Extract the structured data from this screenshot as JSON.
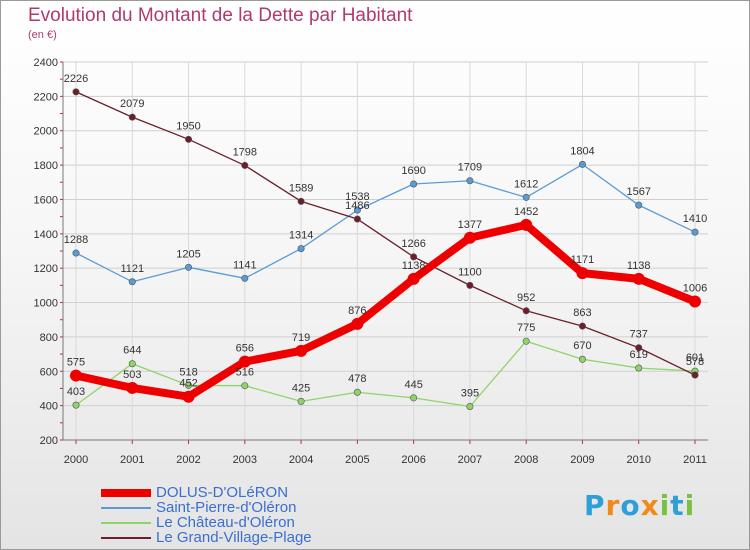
{
  "title": "Evolution du Montant de la Dette par Habitant",
  "subtitle": "(en €)",
  "brand": {
    "letters": [
      "P",
      "r",
      "o",
      "x",
      "i",
      "t",
      "i"
    ],
    "colors": [
      "#2e9fd8",
      "#f08a1c",
      "#2e9fd8",
      "#f08a1c",
      "#7ac143",
      "#2e9fd8",
      "#7ac143"
    ]
  },
  "chart_data": {
    "type": "line",
    "title": "Evolution du Montant de la Dette par Habitant",
    "subtitle": "(en €)",
    "xlabel": "",
    "ylabel": "",
    "x": [
      "2000",
      "2001",
      "2002",
      "2003",
      "2004",
      "2005",
      "2006",
      "2007",
      "2008",
      "2009",
      "2010",
      "2011"
    ],
    "ylim": [
      200,
      2400
    ],
    "yticks": [
      200,
      400,
      600,
      800,
      1000,
      1200,
      1400,
      1600,
      1800,
      2000,
      2200,
      2400
    ],
    "grid": true,
    "legend_position": "bottom-left",
    "series": [
      {
        "name": "DOLUS-D'OLéRON",
        "color": "#ee0000",
        "emphasis": true,
        "values": [
          575,
          503,
          452,
          656,
          719,
          876,
          1138,
          1377,
          1452,
          1171,
          1138,
          1006
        ]
      },
      {
        "name": "Saint-Pierre-d'Oléron",
        "color": "#5b9bd5",
        "emphasis": false,
        "values": [
          1288,
          1121,
          1205,
          1141,
          1314,
          1538,
          1690,
          1709,
          1612,
          1804,
          1567,
          1410
        ]
      },
      {
        "name": "Le Château-d'Oléron",
        "color": "#8fd46a",
        "emphasis": false,
        "values": [
          403,
          644,
          518,
          516,
          425,
          478,
          445,
          395,
          775,
          670,
          619,
          601
        ]
      },
      {
        "name": "Le Grand-Village-Plage",
        "color": "#6b1f2a",
        "emphasis": false,
        "values": [
          2226,
          2079,
          1950,
          1798,
          1589,
          1486,
          1266,
          1100,
          952,
          863,
          737,
          578
        ]
      }
    ]
  }
}
